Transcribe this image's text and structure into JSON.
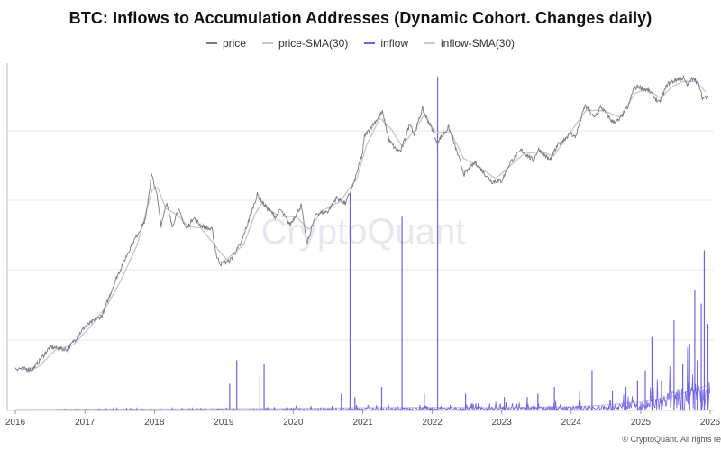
{
  "title": "BTC: Inflows to Accumulation Addresses (Dynamic Cohort. Changes daily)",
  "watermark": "CryptoQuant",
  "footer": "© CryptoQuant. All rights re",
  "colors": {
    "price": "#7b7b84",
    "price_sma": "#c6c6cf",
    "inflow": "#6f63e6",
    "inflow_sma": "#c9c6ef",
    "grid": "#e9e9ef",
    "axis": "#808080"
  },
  "legend": [
    {
      "label": "price",
      "color": "#7b7b84"
    },
    {
      "label": "price-SMA(30)",
      "color": "#c6c6cf"
    },
    {
      "label": "inflow",
      "color": "#6f63e6"
    },
    {
      "label": "inflow-SMA(30)",
      "color": "#c9c6ef"
    }
  ],
  "chart_data": {
    "type": "line",
    "title": "BTC: Inflows to Accumulation Addresses (Dynamic Cohort. Changes daily)",
    "x_ticks": [
      "2016",
      "2017",
      "2018",
      "2019",
      "2020",
      "2021",
      "2022",
      "2023",
      "2024",
      "2025",
      "2026"
    ],
    "xlim": [
      "2016-01-01",
      "2026-01-01"
    ],
    "y_scale": "log",
    "y_tick_labels_visible": false,
    "grid": true,
    "legend_position": "top-center",
    "series": [
      {
        "name": "price",
        "points": [
          [
            "2016-01-01",
            430
          ],
          [
            "2016-04-01",
            420
          ],
          [
            "2016-07-01",
            650
          ],
          [
            "2016-10-01",
            620
          ],
          [
            "2017-01-01",
            970
          ],
          [
            "2017-04-01",
            1200
          ],
          [
            "2017-06-15",
            2500
          ],
          [
            "2017-09-01",
            4700
          ],
          [
            "2017-11-15",
            7800
          ],
          [
            "2017-12-17",
            19000
          ],
          [
            "2018-01-15",
            12500
          ],
          [
            "2018-02-06",
            7000
          ],
          [
            "2018-03-05",
            11000
          ],
          [
            "2018-04-05",
            6800
          ],
          [
            "2018-05-05",
            9700
          ],
          [
            "2018-06-20",
            6500
          ],
          [
            "2018-07-25",
            8200
          ],
          [
            "2018-09-01",
            7000
          ],
          [
            "2018-11-01",
            6400
          ],
          [
            "2018-11-25",
            3800
          ],
          [
            "2018-12-15",
            3300
          ],
          [
            "2019-02-01",
            3500
          ],
          [
            "2019-04-01",
            4900
          ],
          [
            "2019-05-15",
            8000
          ],
          [
            "2019-06-26",
            12800
          ],
          [
            "2019-08-01",
            10500
          ],
          [
            "2019-10-01",
            8200
          ],
          [
            "2019-10-26",
            9500
          ],
          [
            "2019-12-15",
            7100
          ],
          [
            "2020-02-12",
            10300
          ],
          [
            "2020-03-13",
            4900
          ],
          [
            "2020-05-01",
            8800
          ],
          [
            "2020-07-01",
            9200
          ],
          [
            "2020-08-15",
            12000
          ],
          [
            "2020-10-01",
            10700
          ],
          [
            "2020-11-15",
            16000
          ],
          [
            "2020-12-31",
            29000
          ],
          [
            "2021-01-10",
            40000
          ],
          [
            "2021-02-15",
            48000
          ],
          [
            "2021-04-14",
            64000
          ],
          [
            "2021-05-19",
            37000
          ],
          [
            "2021-06-22",
            31000
          ],
          [
            "2021-07-20",
            29800
          ],
          [
            "2021-09-07",
            52000
          ],
          [
            "2021-09-28",
            41000
          ],
          [
            "2021-11-10",
            68000
          ],
          [
            "2021-12-31",
            46000
          ],
          [
            "2022-01-24",
            35000
          ],
          [
            "2022-03-28",
            47500
          ],
          [
            "2022-05-12",
            29000
          ],
          [
            "2022-06-18",
            19000
          ],
          [
            "2022-08-15",
            24000
          ],
          [
            "2022-09-30",
            19500
          ],
          [
            "2022-11-09",
            16500
          ],
          [
            "2022-12-31",
            16600
          ],
          [
            "2023-02-15",
            24000
          ],
          [
            "2023-04-14",
            30400
          ],
          [
            "2023-06-15",
            25000
          ],
          [
            "2023-07-14",
            31000
          ],
          [
            "2023-09-11",
            25000
          ],
          [
            "2023-10-25",
            34000
          ],
          [
            "2023-12-31",
            42500
          ],
          [
            "2024-01-23",
            39000
          ],
          [
            "2024-03-14",
            73000
          ],
          [
            "2024-05-01",
            57000
          ],
          [
            "2024-06-05",
            71000
          ],
          [
            "2024-08-05",
            53000
          ],
          [
            "2024-09-06",
            54000
          ],
          [
            "2024-10-29",
            72000
          ],
          [
            "2024-11-22",
            99000
          ],
          [
            "2024-12-17",
            106000
          ],
          [
            "2025-02-15",
            96000
          ],
          [
            "2025-04-08",
            76000
          ],
          [
            "2025-05-22",
            111000
          ],
          [
            "2025-07-14",
            122000
          ],
          [
            "2025-08-14",
            124000
          ],
          [
            "2025-09-01",
            108000
          ],
          [
            "2025-10-06",
            126000
          ],
          [
            "2025-11-01",
            110000
          ],
          [
            "2025-11-21",
            84000
          ],
          [
            "2025-12-20",
            88000
          ]
        ]
      },
      {
        "name": "price-SMA(30)",
        "points": [
          [
            "2016-02-01",
            420
          ],
          [
            "2016-05-01",
            440
          ],
          [
            "2016-08-01",
            620
          ],
          [
            "2016-11-01",
            680
          ],
          [
            "2017-02-01",
            980
          ],
          [
            "2017-05-01",
            1500
          ],
          [
            "2017-07-15",
            2500
          ],
          [
            "2017-10-01",
            4700
          ],
          [
            "2017-12-20",
            14000
          ],
          [
            "2018-01-20",
            14500
          ],
          [
            "2018-03-01",
            9800
          ],
          [
            "2018-05-01",
            8600
          ],
          [
            "2018-07-01",
            6800
          ],
          [
            "2018-09-01",
            6700
          ],
          [
            "2018-12-01",
            4400
          ],
          [
            "2019-01-15",
            3600
          ],
          [
            "2019-04-15",
            4800
          ],
          [
            "2019-06-15",
            8800
          ],
          [
            "2019-07-20",
            10700
          ],
          [
            "2019-10-15",
            8400
          ],
          [
            "2020-01-15",
            8300
          ],
          [
            "2020-03-25",
            6500
          ],
          [
            "2020-06-01",
            9300
          ],
          [
            "2020-09-01",
            11100
          ],
          [
            "2020-12-01",
            17500
          ],
          [
            "2021-01-20",
            33500
          ],
          [
            "2021-04-01",
            57000
          ],
          [
            "2021-05-30",
            46000
          ],
          [
            "2021-07-25",
            33000
          ],
          [
            "2021-10-01",
            45000
          ],
          [
            "2021-11-20",
            61000
          ],
          [
            "2022-01-15",
            43000
          ],
          [
            "2022-04-10",
            43000
          ],
          [
            "2022-06-15",
            26000
          ],
          [
            "2022-08-15",
            22900
          ],
          [
            "2022-11-30",
            17500
          ],
          [
            "2023-02-01",
            21500
          ],
          [
            "2023-04-30",
            28500
          ],
          [
            "2023-08-01",
            29500
          ],
          [
            "2023-10-01",
            27000
          ],
          [
            "2023-12-15",
            40500
          ],
          [
            "2024-03-20",
            66000
          ],
          [
            "2024-06-20",
            66000
          ],
          [
            "2024-09-15",
            58000
          ],
          [
            "2024-12-01",
            92000
          ],
          [
            "2025-02-01",
            100000
          ],
          [
            "2025-04-15",
            84000
          ],
          [
            "2025-06-15",
            105000
          ],
          [
            "2025-08-15",
            117000
          ],
          [
            "2025-10-15",
            116000
          ],
          [
            "2025-12-10",
            95000
          ]
        ]
      },
      {
        "name": "inflow",
        "style": "spikes",
        "spikes": [
          [
            "2019-02-01",
            0.08
          ],
          [
            "2019-03-10",
            0.15
          ],
          [
            "2019-07-10",
            0.1
          ],
          [
            "2019-08-01",
            0.14
          ],
          [
            "2020-09-10",
            0.05
          ],
          [
            "2020-10-26",
            0.65
          ],
          [
            "2020-11-20",
            0.04
          ],
          [
            "2021-04-10",
            0.07
          ],
          [
            "2021-07-26",
            0.58
          ],
          [
            "2021-11-20",
            0.05
          ],
          [
            "2022-01-29",
            1.0
          ],
          [
            "2022-06-25",
            0.05
          ],
          [
            "2023-01-15",
            0.04
          ],
          [
            "2023-05-15",
            0.04
          ],
          [
            "2023-07-10",
            0.05
          ],
          [
            "2023-10-05",
            0.07
          ],
          [
            "2024-02-15",
            0.06
          ],
          [
            "2024-04-20",
            0.12
          ],
          [
            "2024-08-05",
            0.06
          ],
          [
            "2024-10-15",
            0.07
          ],
          [
            "2024-12-15",
            0.09
          ],
          [
            "2025-01-25",
            0.12
          ],
          [
            "2025-03-01",
            0.22
          ],
          [
            "2025-04-20",
            0.09
          ],
          [
            "2025-06-25",
            0.27
          ],
          [
            "2025-08-10",
            0.14
          ],
          [
            "2025-09-15",
            0.2
          ],
          [
            "2025-10-12",
            0.36
          ],
          [
            "2025-10-25",
            0.15
          ],
          [
            "2025-11-15",
            0.32
          ],
          [
            "2025-12-01",
            0.48
          ],
          [
            "2025-12-20",
            0.26
          ]
        ]
      },
      {
        "name": "inflow-SMA(30)",
        "points": [
          [
            "2016-01-01",
            0.003
          ],
          [
            "2018-01-01",
            0.004
          ],
          [
            "2019-01-01",
            0.005
          ],
          [
            "2020-01-01",
            0.006
          ],
          [
            "2021-01-01",
            0.008
          ],
          [
            "2022-01-01",
            0.009
          ],
          [
            "2023-01-01",
            0.008
          ],
          [
            "2024-01-01",
            0.01
          ],
          [
            "2024-06-01",
            0.015
          ],
          [
            "2025-01-01",
            0.025
          ],
          [
            "2025-06-01",
            0.04
          ],
          [
            "2025-10-01",
            0.06
          ],
          [
            "2025-12-20",
            0.075
          ]
        ]
      }
    ]
  }
}
